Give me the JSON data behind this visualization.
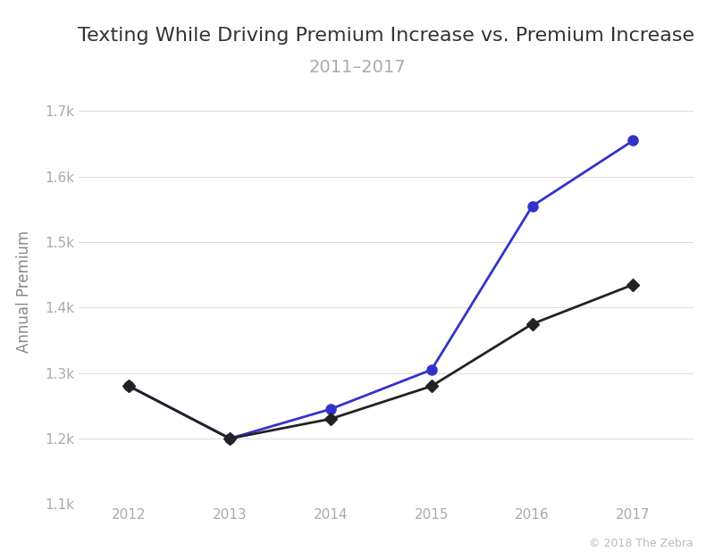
{
  "title": "Texting While Driving Premium Increase vs. Premium Increase",
  "subtitle": "2011–2017",
  "ylabel": "Annual Premium",
  "background_color": "#ffffff",
  "plot_bg_color": "#ffffff",
  "years": [
    2012,
    2013,
    2014,
    2015,
    2016,
    2017
  ],
  "blue_values": [
    1280,
    1200,
    1245,
    1305,
    1555,
    1655
  ],
  "black_values": [
    1280,
    1200,
    1230,
    1280,
    1375,
    1435
  ],
  "blue_color": "#3333cc",
  "black_color": "#222222",
  "ylim": [
    1100,
    1750
  ],
  "yticks": [
    1100,
    1200,
    1300,
    1400,
    1500,
    1600,
    1700
  ],
  "xlim_left": 2011.5,
  "xlim_right": 2017.6,
  "watermark": "© 2018 The Zebra",
  "title_fontsize": 16,
  "subtitle_fontsize": 14,
  "ylabel_fontsize": 12,
  "tick_fontsize": 11,
  "watermark_fontsize": 9,
  "grid_color": "#dddddd",
  "tick_label_color": "#aaaaaa",
  "ylabel_color": "#888888",
  "title_color": "#333333",
  "subtitle_color": "#aaaaaa",
  "watermark_color": "#bbbbbb"
}
